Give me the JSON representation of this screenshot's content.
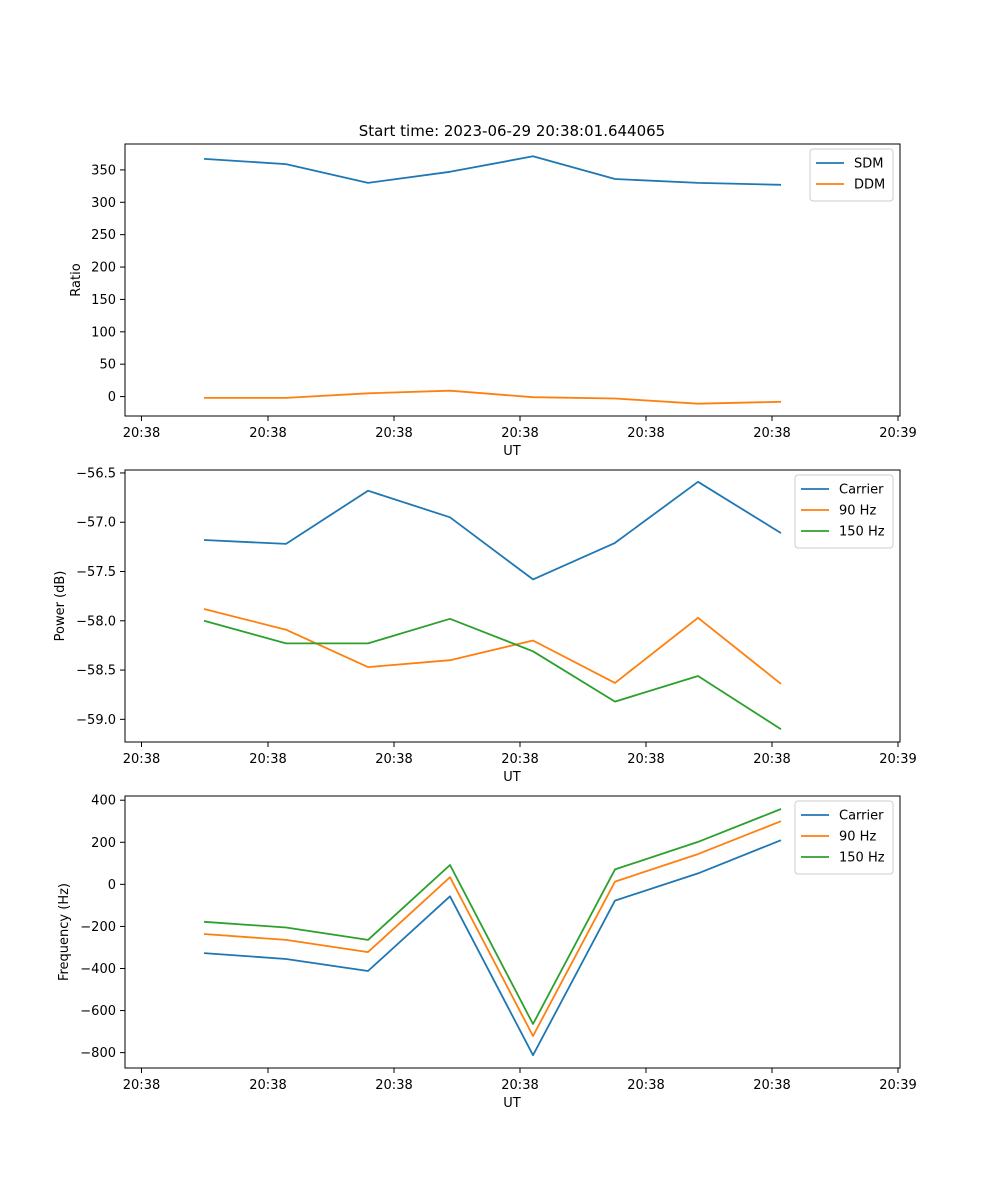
{
  "figure": {
    "title": "Start time: 2023-06-29 20:38:01.644065"
  },
  "chart_data": [
    {
      "type": "line",
      "title": "Start time: 2023-06-29 20:38:01.644065",
      "xlabel": "UT",
      "ylabel": "Ratio",
      "x_tick_labels": [
        "20:38",
        "20:38",
        "20:38",
        "20:38",
        "20:38",
        "20:38",
        "20:38"
      ],
      "x_tick_end_label": "20:39",
      "ylim": [
        -30,
        390
      ],
      "y_ticks": [
        0,
        50,
        100,
        150,
        200,
        250,
        300,
        350
      ],
      "legend_position": "upper right",
      "series": [
        {
          "name": "SDM",
          "color": "#1f77b4",
          "values": [
            367,
            359,
            330,
            347,
            371,
            336,
            330,
            327
          ]
        },
        {
          "name": "DDM",
          "color": "#ff7f0e",
          "values": [
            -2,
            -2,
            5,
            9,
            -1,
            -3,
            -11,
            -8
          ]
        }
      ]
    },
    {
      "type": "line",
      "title": "",
      "xlabel": "UT",
      "ylabel": "Power (dB)",
      "x_tick_labels": [
        "20:38",
        "20:38",
        "20:38",
        "20:38",
        "20:38",
        "20:38",
        "20:38"
      ],
      "x_tick_end_label": "20:39",
      "ylim": [
        -59.23,
        -56.47
      ],
      "y_ticks": [
        -59.0,
        -58.5,
        -58.0,
        -57.5,
        -57.0,
        -56.5
      ],
      "y_tick_labels": [
        "−59.0",
        "−58.5",
        "−58.0",
        "−57.5",
        "−57.0",
        "−56.5"
      ],
      "legend_position": "upper right",
      "series": [
        {
          "name": "Carrier",
          "color": "#1f77b4",
          "values": [
            -57.18,
            -57.22,
            -56.68,
            -56.95,
            -57.58,
            -57.21,
            -56.59,
            -57.11
          ]
        },
        {
          "name": "90 Hz",
          "color": "#ff7f0e",
          "values": [
            -57.88,
            -58.09,
            -58.47,
            -58.4,
            -58.2,
            -58.63,
            -57.97,
            -58.64
          ]
        },
        {
          "name": "150 Hz",
          "color": "#2ca02c",
          "values": [
            -58.0,
            -58.23,
            -58.23,
            -57.98,
            -58.31,
            -58.82,
            -58.56,
            -59.1
          ]
        }
      ]
    },
    {
      "type": "line",
      "title": "",
      "xlabel": "UT",
      "ylabel": "Frequency (Hz)",
      "x_tick_labels": [
        "20:38",
        "20:38",
        "20:38",
        "20:38",
        "20:38",
        "20:38",
        "20:38"
      ],
      "x_tick_end_label": "20:39",
      "ylim": [
        -873,
        420
      ],
      "y_ticks": [
        -800,
        -600,
        -400,
        -200,
        0,
        200,
        400
      ],
      "y_tick_labels": [
        "−800",
        "−600",
        "−400",
        "−200",
        "0",
        "200",
        "400"
      ],
      "legend_position": "upper right",
      "series": [
        {
          "name": "Carrier",
          "color": "#1f77b4",
          "values": [
            -327,
            -355,
            -412,
            -57,
            -812,
            -77,
            52,
            210
          ]
        },
        {
          "name": "90 Hz",
          "color": "#ff7f0e",
          "values": [
            -236,
            -264,
            -322,
            34,
            -721,
            13,
            144,
            300
          ]
        },
        {
          "name": "150 Hz",
          "color": "#2ca02c",
          "values": [
            -178,
            -205,
            -264,
            92,
            -664,
            71,
            202,
            358
          ]
        }
      ]
    }
  ]
}
